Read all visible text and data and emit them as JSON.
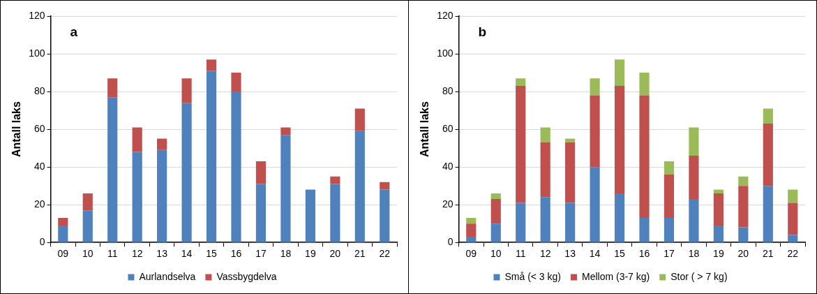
{
  "chart_data": [
    {
      "type": "bar",
      "stacked": true,
      "ylabel": "Antall laks",
      "annotations": [
        "a"
      ],
      "categories": [
        "09",
        "10",
        "11",
        "12",
        "13",
        "14",
        "15",
        "16",
        "17",
        "18",
        "19",
        "20",
        "21",
        "22"
      ],
      "ylim": [
        0,
        120
      ],
      "yticks": [
        0,
        20,
        40,
        60,
        80,
        100,
        120
      ],
      "grid": "y",
      "legend": "bottom",
      "series": [
        {
          "name": "Aurlandselva",
          "color": "#4f81bd",
          "values": [
            9,
            17,
            77,
            48,
            49,
            74,
            91,
            80,
            31,
            57,
            28,
            31,
            59,
            28
          ]
        },
        {
          "name": "Vassbygdelva",
          "color": "#c0504d",
          "values": [
            4,
            9,
            10,
            13,
            6,
            13,
            6,
            10,
            12,
            4,
            0,
            4,
            12,
            4
          ]
        }
      ]
    },
    {
      "type": "bar",
      "stacked": true,
      "ylabel": "Antall laks",
      "annotations": [
        "b"
      ],
      "categories": [
        "09",
        "10",
        "11",
        "12",
        "13",
        "14",
        "15",
        "16",
        "17",
        "18",
        "19",
        "20",
        "21",
        "22"
      ],
      "ylim": [
        0,
        120
      ],
      "yticks": [
        0,
        20,
        40,
        60,
        80,
        100,
        120
      ],
      "grid": "y",
      "legend": "bottom",
      "series": [
        {
          "name": "Små (< 3 kg)",
          "color": "#4f81bd",
          "values": [
            3,
            10,
            21,
            24,
            21,
            40,
            26,
            13,
            13,
            23,
            9,
            8,
            30,
            4
          ]
        },
        {
          "name": "Mellom (3-7 kg)",
          "color": "#c0504d",
          "values": [
            7,
            13,
            62,
            29,
            32,
            38,
            57,
            65,
            23,
            23,
            17,
            22,
            33,
            17
          ]
        },
        {
          "name": "Stor ( > 7 kg)",
          "color": "#9bbb59",
          "values": [
            3,
            3,
            4,
            8,
            2,
            9,
            14,
            12,
            7,
            15,
            2,
            5,
            8,
            7
          ]
        }
      ]
    }
  ]
}
